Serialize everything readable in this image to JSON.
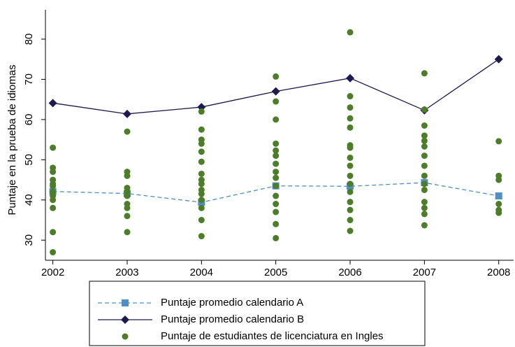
{
  "chart_data": {
    "type": "line",
    "y_label": "Puntaje en la prueba de idiomas",
    "x": [
      2002,
      2003,
      2004,
      2005,
      2006,
      2007,
      2008
    ],
    "xlim": [
      2001.9,
      2008.2
    ],
    "xticks": [
      2002,
      2003,
      2004,
      2005,
      2006,
      2007,
      2008
    ],
    "ylim": [
      25,
      87.3
    ],
    "yticks": [
      30,
      40,
      50,
      60,
      70,
      80
    ],
    "grid": false,
    "legend": "bottom",
    "series": [
      {
        "name": "Puntaje promedio calendario A",
        "color": "#4f8fc6",
        "style": "dashed",
        "marker": "square",
        "values": [
          42.1,
          41.6,
          39.4,
          43.5,
          43.4,
          44.3,
          41.0
        ]
      },
      {
        "name": "Puntaje promedio calendario B",
        "color": "#1c1a4f",
        "style": "solid",
        "marker": "diamond",
        "values": [
          64.1,
          61.4,
          63.1,
          67.0,
          70.3,
          62.3,
          75.0
        ]
      },
      {
        "name": "Puntaje de estudiantes de licenciatura en Ingles",
        "color": "#4e7d2a",
        "style": "none",
        "marker": "circle",
        "x": [
          2002,
          2002,
          2002,
          2002,
          2002,
          2002,
          2002,
          2002,
          2002,
          2002,
          2002,
          2002,
          2003,
          2003,
          2003,
          2003,
          2003,
          2003,
          2003,
          2003,
          2003,
          2003,
          2004,
          2004,
          2004,
          2004,
          2004,
          2004,
          2004,
          2004,
          2004,
          2004,
          2004,
          2004,
          2004,
          2004,
          2004,
          2005,
          2005,
          2005,
          2005,
          2005,
          2005,
          2005,
          2005,
          2005,
          2005,
          2005,
          2005,
          2005,
          2005,
          2005,
          2006,
          2006,
          2006,
          2006,
          2006,
          2006,
          2006,
          2006,
          2006,
          2006,
          2006,
          2006,
          2006,
          2006,
          2006,
          2006,
          2007,
          2007,
          2007,
          2007,
          2007,
          2007,
          2007,
          2007,
          2007,
          2007,
          2007,
          2007,
          2007,
          2007,
          2007,
          2008,
          2008,
          2008,
          2008,
          2008,
          2008
        ],
        "values": [
          53,
          48,
          47,
          45,
          44,
          43.5,
          42,
          41,
          40,
          38,
          32,
          27,
          57,
          47,
          46,
          43,
          42,
          41,
          39,
          38,
          36,
          32,
          62,
          57.5,
          55,
          54,
          52,
          49.5,
          46.5,
          45,
          44,
          42.5,
          41.5,
          40,
          38,
          35,
          31,
          70.7,
          64.5,
          60,
          54,
          52.3,
          51,
          49,
          47,
          45.5,
          43.5,
          41,
          39,
          37,
          34,
          30.5,
          81.7,
          65.8,
          63,
          60.3,
          58,
          53.6,
          53,
          50.5,
          48.5,
          46,
          44,
          42,
          39.5,
          37.5,
          35,
          32.3,
          71.5,
          62.5,
          58.5,
          56,
          54.7,
          53.3,
          51,
          48.5,
          46,
          44,
          42.5,
          39.5,
          38,
          36.5,
          33.7,
          54.6,
          46,
          45,
          39,
          37.5,
          36.8
        ]
      }
    ]
  }
}
